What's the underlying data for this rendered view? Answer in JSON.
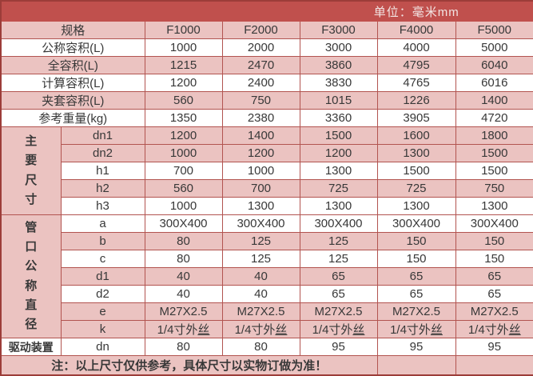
{
  "unit_header": "单位：毫米mm",
  "columns": {
    "spec_label": "规格",
    "models": [
      "F1000",
      "F2000",
      "F3000",
      "F4000",
      "F5000"
    ]
  },
  "simple_rows": [
    {
      "label": "公称容积(L)",
      "bg": "white",
      "values": [
        "1000",
        "2000",
        "3000",
        "4000",
        "5000"
      ]
    },
    {
      "label": "全容积(L)",
      "bg": "pink",
      "values": [
        "1215",
        "2470",
        "3860",
        "4795",
        "6040"
      ]
    },
    {
      "label": "计算容积(L)",
      "bg": "white",
      "values": [
        "1200",
        "2400",
        "3830",
        "4765",
        "6016"
      ]
    },
    {
      "label": "夹套容积(L)",
      "bg": "pink",
      "values": [
        "560",
        "750",
        "1015",
        "1226",
        "1400"
      ]
    },
    {
      "label": "参考重量(kg)",
      "bg": "white",
      "values": [
        "1350",
        "2380",
        "3360",
        "3905",
        "4720"
      ]
    }
  ],
  "groups": [
    {
      "label": "主要尺寸",
      "name": "group-label-main-dimensions",
      "orientation": "vertical",
      "rows": [
        {
          "param": "dn1",
          "bg": "pink",
          "values": [
            "1200",
            "1400",
            "1500",
            "1600",
            "1800"
          ]
        },
        {
          "param": "dn2",
          "bg": "pink",
          "values": [
            "1000",
            "1200",
            "1200",
            "1300",
            "1500"
          ]
        },
        {
          "param": "h1",
          "bg": "white",
          "values": [
            "700",
            "1000",
            "1300",
            "1500",
            "1500"
          ]
        },
        {
          "param": "h2",
          "bg": "pink",
          "values": [
            "560",
            "700",
            "725",
            "725",
            "750"
          ]
        },
        {
          "param": "h3",
          "bg": "white",
          "values": [
            "1000",
            "1300",
            "1300",
            "1300",
            "1300"
          ]
        }
      ]
    },
    {
      "label": "管口公称直径",
      "name": "group-label-nozzle-nominal-diameter",
      "orientation": "vertical",
      "rows": [
        {
          "param": "a",
          "bg": "white",
          "values": [
            "300X400",
            "300X400",
            "300X400",
            "300X400",
            "300X400"
          ]
        },
        {
          "param": "b",
          "bg": "pink",
          "values": [
            "80",
            "125",
            "125",
            "150",
            "150"
          ]
        },
        {
          "param": "c",
          "bg": "white",
          "values": [
            "80",
            "125",
            "125",
            "150",
            "150"
          ]
        },
        {
          "param": "d1",
          "bg": "pink",
          "values": [
            "40",
            "40",
            "65",
            "65",
            "65"
          ]
        },
        {
          "param": "d2",
          "bg": "white",
          "values": [
            "40",
            "40",
            "65",
            "65",
            "65"
          ]
        },
        {
          "param": "e",
          "bg": "pink",
          "values": [
            "M27X2.5",
            "M27X2.5",
            "M27X2.5",
            "M27X2.5",
            "M27X2.5"
          ]
        },
        {
          "param": "k",
          "bg": "pink",
          "underline_last": true,
          "values_split": [
            {
              "pre": "1/4寸外",
              "u": "丝"
            },
            {
              "pre": "1/4寸外",
              "u": "丝"
            },
            {
              "pre": "1/4寸外",
              "u": "丝"
            },
            {
              "pre": "1/4寸外",
              "u": "丝"
            },
            {
              "pre": "1/4寸外",
              "u": "丝"
            }
          ]
        }
      ]
    },
    {
      "label": "驱动装置",
      "name": "group-label-drive-unit",
      "orientation": "horizontal",
      "rows": [
        {
          "param": "dn",
          "bg": "white",
          "values": [
            "80",
            "80",
            "95",
            "95",
            "95"
          ]
        }
      ]
    }
  ],
  "note": "注：以上尺寸仅供参考，具体尺寸以实物订做为准！",
  "colors": {
    "header_bg": "#c0504d",
    "row_pink": "#ebc3c1",
    "row_white": "#ffffff",
    "grid_border": "#b25450",
    "outer_border": "#9c3d39",
    "header_text": "#f2e4e3",
    "body_text": "#383838"
  }
}
